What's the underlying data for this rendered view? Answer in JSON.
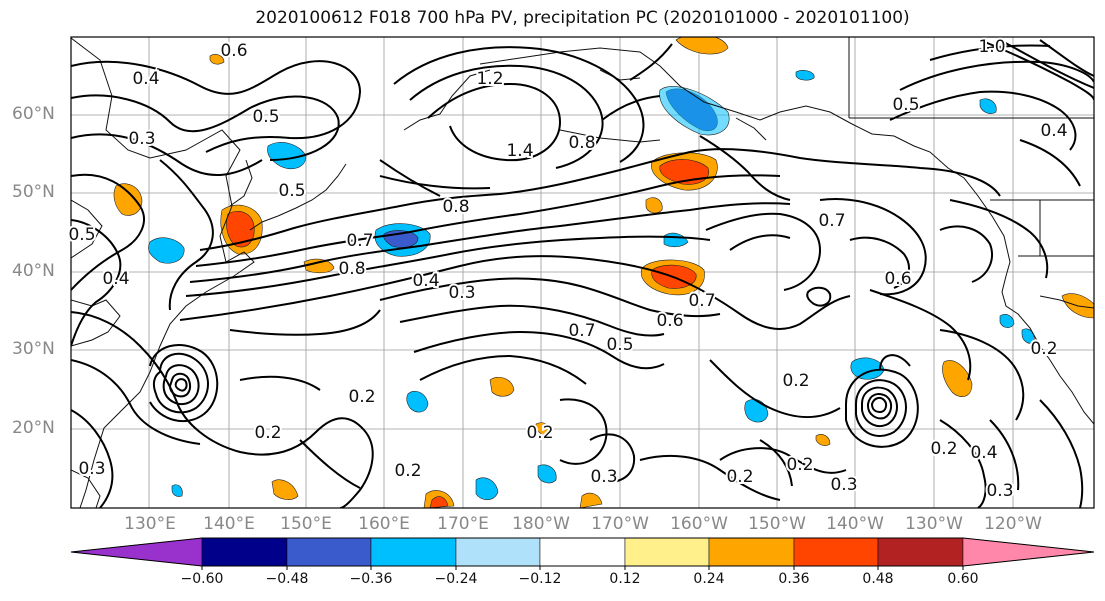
{
  "title": "2020100612 F018 700 hPa PV, precipitation PC (2020101000 - 2020101100)",
  "lat_labels": [
    "60°N",
    "50°N",
    "40°N",
    "30°N",
    "20°N"
  ],
  "lon_labels": [
    "130°E",
    "140°E",
    "150°E",
    "160°E",
    "170°E",
    "180°W",
    "170°W",
    "160°W",
    "150°W",
    "140°W",
    "130°W",
    "120°W"
  ],
  "contour_labels": [
    "0.6",
    "0.4",
    "0.3",
    "0.5",
    "0.5",
    "1.2",
    "1.4",
    "0.8",
    "0.8",
    "0.7",
    "0.8",
    "0.4",
    "0.3",
    "0.5",
    "0.4",
    "0.7",
    "0.6",
    "0.5",
    "0.7",
    "0.2",
    "0.2",
    "0.2",
    "0.2",
    "0.3",
    "0.3",
    "0.2",
    "0.2",
    "0.3",
    "0.4",
    "0.2",
    "0.3",
    "1.0",
    "0.5",
    "0.4",
    "0.6",
    "0.7",
    "0.2",
    "0.2"
  ],
  "colorbar": {
    "colors": [
      "#9932cc",
      "#00008b",
      "#3a5bcb",
      "#00bfff",
      "#afe2fa",
      "#ffffff",
      "#fff08c",
      "#ffa500",
      "#ff4500",
      "#b22222",
      "#ff88aa"
    ],
    "ticks": [
      "−0.60",
      "−0.48",
      "−0.36",
      "−0.24",
      "−0.12",
      "0.12",
      "0.24",
      "0.36",
      "0.48",
      "0.60"
    ]
  }
}
